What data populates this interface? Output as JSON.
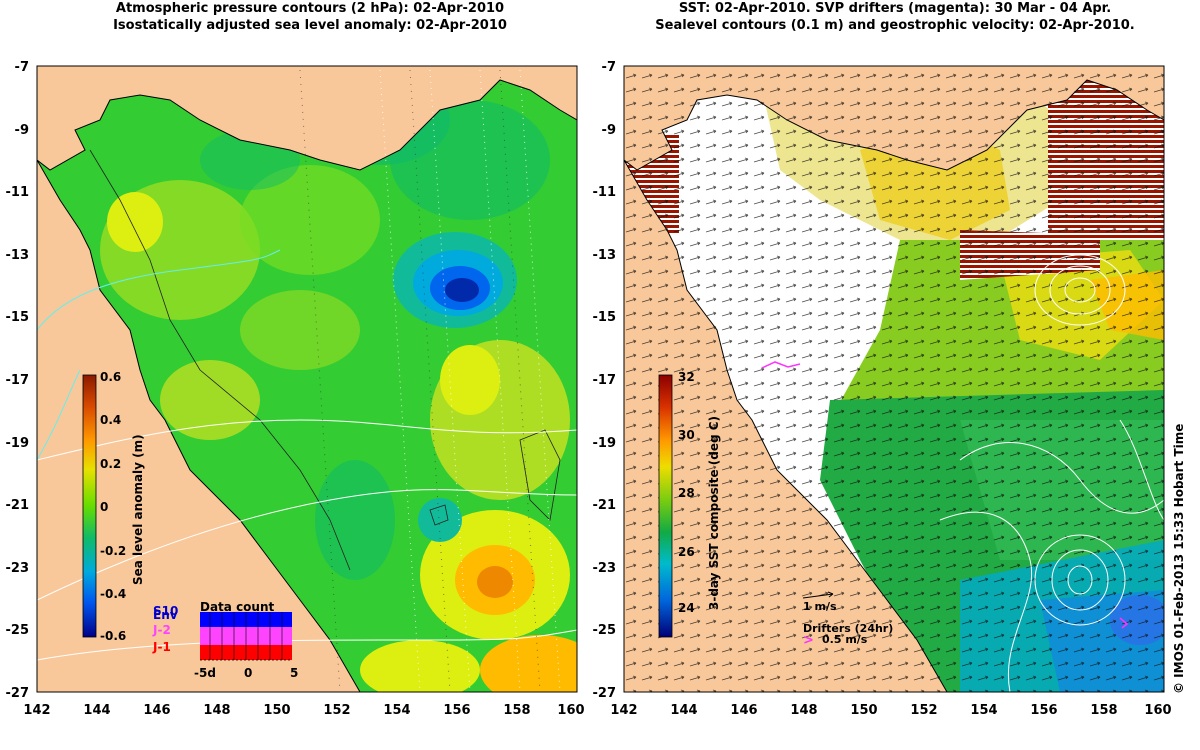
{
  "left_panel": {
    "title_line1": "Atmospheric pressure contours (2 hPa): 02-Apr-2010",
    "title_line2": "Isostatically adjusted sea level anomaly: 02-Apr-2010",
    "colorbar_label": "Sea level anomaly (m)",
    "colorbar_ticks": [
      "0.6",
      "0.4",
      "0.2",
      "0",
      "-0.2",
      "-0.4",
      "-0.6"
    ],
    "datacount": {
      "title": "Data count",
      "legend": [
        "Env",
        "J-2",
        "J-1"
      ],
      "legend_overlap_label": "S10",
      "x_ticks": [
        "-5d",
        "0",
        "5"
      ],
      "legend_colors": [
        "#0000cc",
        "#ff44ff",
        "#ff0000"
      ]
    }
  },
  "right_panel": {
    "title_line1": "SST: 02-Apr-2010. SVP drifters (magenta): 30 Mar - 04 Apr.",
    "title_line2": "Sealevel contours (0.1 m) and geostrophic velocity: 02-Apr-2010.",
    "colorbar_label": "3-day SST composite (deg C)",
    "colorbar_ticks": [
      "32",
      "30",
      "28",
      "26",
      "24"
    ],
    "velocity_scale_label": "1 m/s",
    "drifters_label": "Drifters (24hr)",
    "drifters_scale_label": "0.5 m/s",
    "drifters_color": "#ff33ff"
  },
  "axes": {
    "lat_ticks": [
      "-7",
      "-9",
      "-11",
      "-13",
      "-15",
      "-17",
      "-19",
      "-21",
      "-23",
      "-25",
      "-27"
    ],
    "lon_ticks": [
      "142",
      "144",
      "146",
      "148",
      "150",
      "152",
      "154",
      "156",
      "158",
      "160"
    ]
  },
  "credit": "© IMOS 01-Feb-2013 15:33 Hobart Time",
  "colors": {
    "land": "#f9c89a",
    "ocean_mid": "#33cc33",
    "cloud": "#ffffff"
  }
}
